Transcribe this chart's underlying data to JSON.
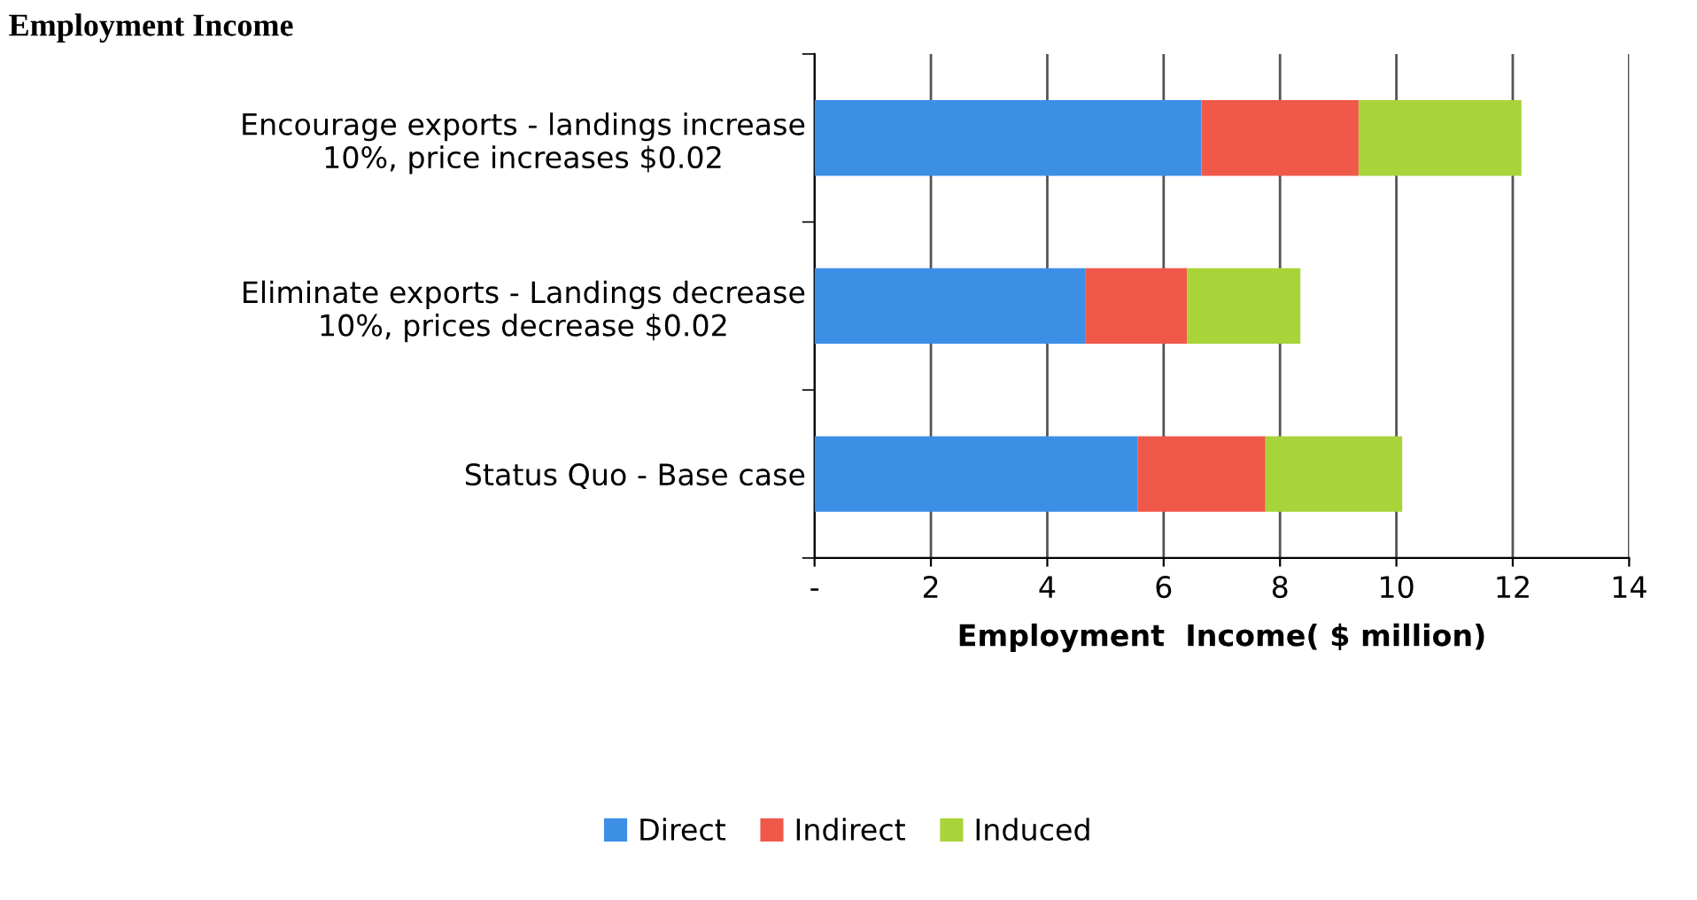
{
  "chart_data": {
    "type": "bar",
    "orientation": "horizontal",
    "stacked": true,
    "title": "Employment Income",
    "categories": [
      "Encourage exports - landings increase\n10%, price increases $0.02",
      "Eliminate exports - Landings decrease\n10%, prices decrease $0.02",
      "Status Quo - Base case"
    ],
    "series": [
      {
        "name": "Direct",
        "color": "#3d8fe6",
        "values": [
          6.65,
          4.65,
          5.55
        ]
      },
      {
        "name": "Indirect",
        "color": "#f0584a",
        "values": [
          2.7,
          1.75,
          2.2
        ]
      },
      {
        "name": "Induced",
        "color": "#a8d43a",
        "values": [
          2.8,
          1.95,
          2.35
        ]
      }
    ],
    "xlabel": "Employment  Income( $ million)",
    "xlim": [
      0,
      14
    ],
    "xticks": [
      {
        "value": 0,
        "label": "-"
      },
      2,
      4,
      6,
      8,
      10,
      12,
      14
    ],
    "grid": "x",
    "legend": "bottom"
  }
}
